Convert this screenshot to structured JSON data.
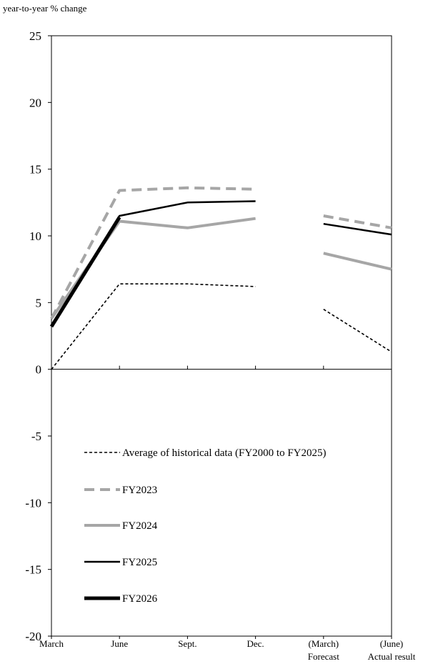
{
  "chart_data": {
    "type": "line",
    "ylabel": "year-to-year % change",
    "ylim": [
      -20,
      25
    ],
    "yticks": [
      "25",
      "20",
      "15",
      "10",
      "5",
      "0",
      "-5",
      "-10",
      "-15",
      "-20"
    ],
    "x": [
      {
        "line1": "March",
        "line2": ""
      },
      {
        "line1": "June",
        "line2": ""
      },
      {
        "line1": "Sept.",
        "line2": ""
      },
      {
        "line1": "Dec.",
        "line2": ""
      },
      {
        "line1": "(March)",
        "line2": "Forecast"
      },
      {
        "line1": "(June)",
        "line2": "Actual result"
      }
    ],
    "grid": false,
    "legend_position": "lower-left-inside",
    "series": [
      {
        "name": "Average of historical data (FY2000 to FY2025)",
        "color": "#000000",
        "style": "dashed-thin",
        "values": [
          0.0,
          6.4,
          6.4,
          6.2,
          4.5,
          1.3
        ]
      },
      {
        "name": "FY2023",
        "color": "#a6a6a6",
        "style": "dashed-thick",
        "values": [
          3.8,
          13.4,
          13.6,
          13.5,
          11.5,
          10.6
        ]
      },
      {
        "name": "FY2024",
        "color": "#a6a6a6",
        "style": "solid-thick",
        "values": [
          3.8,
          11.1,
          10.6,
          11.3,
          8.7,
          7.5
        ]
      },
      {
        "name": "FY2025",
        "color": "#000000",
        "style": "solid",
        "values": [
          3.3,
          11.5,
          12.5,
          12.6,
          10.9,
          10.1
        ]
      },
      {
        "name": "FY2026",
        "color": "#000000",
        "style": "solid-heavy",
        "values": [
          3.2,
          11.4,
          null,
          null,
          null,
          null
        ]
      }
    ],
    "breaks_after_index": 3
  }
}
